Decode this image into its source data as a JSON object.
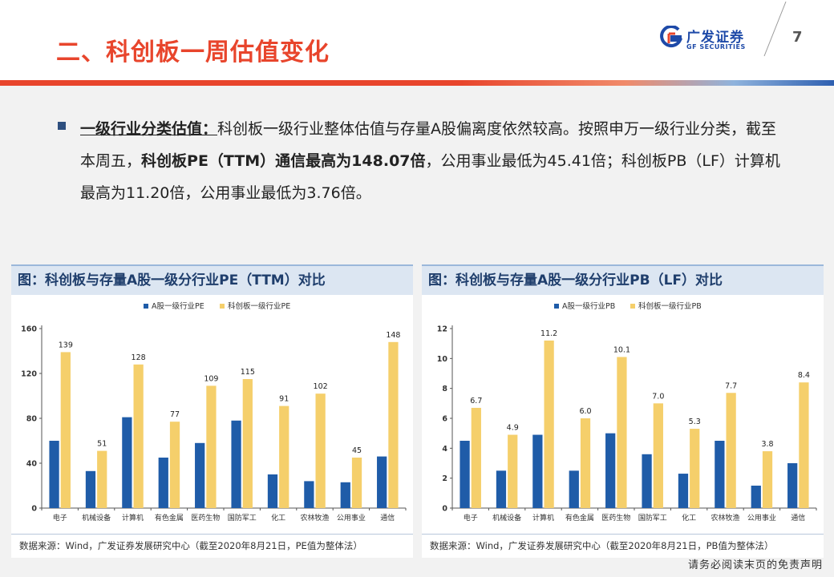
{
  "header": {
    "title": "二、科创板一周估值变化",
    "logo_cn": "广发证券",
    "logo_en": "GF SECURITIES",
    "page_number": "7"
  },
  "body": {
    "lead": "一级行业分类估值：",
    "text1": "科创板一级行业整体估值与存量A股偏离度依然较高。按照申万一级行业分类，截至本周五，",
    "strong": "科创板PE（TTM）通信最高为148.07倍",
    "text2": "，公用事业最低为45.41倍；科创板PB（LF）计算机最高为11.20倍，公用事业最低为3.76倍。"
  },
  "footer": "请务必阅读末页的免责声明",
  "colors": {
    "series1": "#1f5ca8",
    "series2": "#f5cf6b",
    "accent": "#e8452c"
  },
  "chart_data": [
    {
      "type": "bar",
      "title": "图：科创板与存量A股一级分行业PE（TTM）对比",
      "categories": [
        "电子",
        "机械设备",
        "计算机",
        "有色金属",
        "医药生物",
        "国防军工",
        "化工",
        "农林牧渔",
        "公用事业",
        "通信"
      ],
      "series": [
        {
          "name": "A股一级行业PE",
          "values": [
            60,
            33,
            81,
            45,
            58,
            78,
            30,
            24,
            23,
            46
          ],
          "labels": []
        },
        {
          "name": "科创板一级行业PE",
          "values": [
            139,
            51,
            128,
            77,
            109,
            115,
            91,
            102,
            45,
            148
          ],
          "labels": [
            "139",
            "51",
            "128",
            "77",
            "109",
            "115",
            "91",
            "102",
            "45",
            "148"
          ]
        }
      ],
      "yticks": [
        "0",
        "40",
        "80",
        "120",
        "160"
      ],
      "ylim": [
        0,
        160
      ],
      "source": "数据来源：Wind，广发证券发展研究中心（截至2020年8月21日，PE值为整体法）"
    },
    {
      "type": "bar",
      "title": "图：科创板与存量A股一级分行业PB（LF）对比",
      "categories": [
        "电子",
        "机械设备",
        "计算机",
        "有色金属",
        "医药生物",
        "国防军工",
        "化工",
        "农林牧渔",
        "公用事业",
        "通信"
      ],
      "series": [
        {
          "name": "A股一级行业PB",
          "values": [
            4.5,
            2.5,
            4.9,
            2.5,
            5.0,
            3.6,
            2.3,
            4.5,
            1.5,
            3.0
          ],
          "labels": []
        },
        {
          "name": "科创板一级行业PB",
          "values": [
            6.7,
            4.9,
            11.2,
            6.0,
            10.1,
            7.0,
            5.3,
            7.7,
            3.8,
            8.4
          ],
          "labels": [
            "6.7",
            "4.9",
            "11.2",
            "6.0",
            "10.1",
            "7.0",
            "5.3",
            "7.7",
            "3.8",
            "8.4"
          ]
        }
      ],
      "yticks": [
        "0",
        "2",
        "4",
        "6",
        "8",
        "10",
        "12"
      ],
      "ylim": [
        0,
        12
      ],
      "source": "数据来源：Wind，广发证券发展研究中心（截至2020年8月21日，PB值为整体法）"
    }
  ]
}
